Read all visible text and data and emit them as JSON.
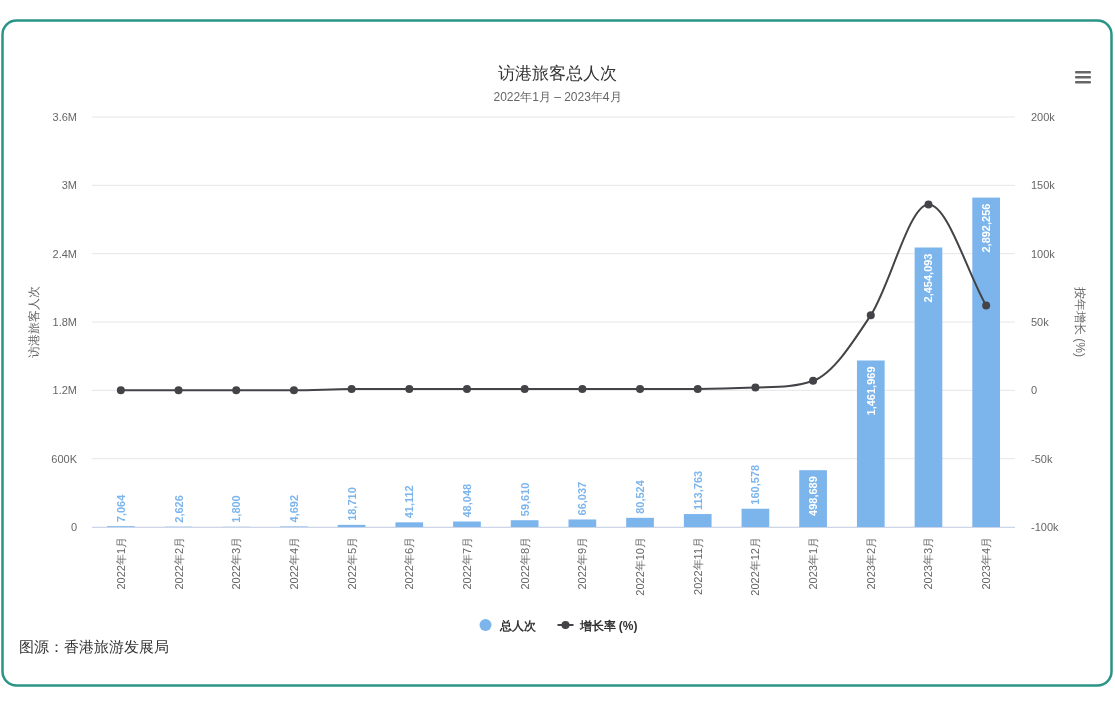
{
  "chart_data": {
    "type": "bar",
    "title": "访港旅客总人次",
    "subtitle": "2022年1月 – 2023年4月",
    "ylabel": "访港旅客人次",
    "y2label": "按年增长 (%)",
    "categories": [
      "2022年1月",
      "2022年2月",
      "2022年3月",
      "2022年4月",
      "2022年5月",
      "2022年6月",
      "2022年7月",
      "2022年8月",
      "2022年9月",
      "2022年10月",
      "2022年11月",
      "2022年12月",
      "2023年1月",
      "2023年2月",
      "2023年3月",
      "2023年4月"
    ],
    "series": [
      {
        "name": "总人次",
        "color": "#7cb5ec",
        "values": [
          7064,
          2626,
          1800,
          4692,
          18710,
          41112,
          48048,
          59610,
          66037,
          80524,
          113763,
          160578,
          498689,
          1461969,
          2454093,
          2892256
        ],
        "value_labels": [
          "7,064",
          "2,626",
          "1,800",
          "4,692",
          "18,710",
          "41,112",
          "48,048",
          "59,610",
          "66,037",
          "80,524",
          "113,763",
          "160,578",
          "498,689",
          "1,461,969",
          "2,454,093",
          "2,892,256"
        ]
      },
      {
        "name": "增长率 (%)",
        "type": "line",
        "axis": "y2",
        "color": "#434348",
        "marker": "circle",
        "values": [
          0,
          0,
          0,
          0,
          1000,
          1000,
          1000,
          1000,
          1000,
          1000,
          1000,
          2000,
          7000,
          55000,
          136000,
          62000
        ]
      }
    ],
    "ylim": [
      0,
      3600000
    ],
    "yticks": [
      0,
      {
        "value": 600000,
        "label": "600K"
      },
      {
        "value": 1200000,
        "label": "1.2M"
      },
      {
        "value": 1800000,
        "label": "1.8M"
      },
      {
        "value": 2400000,
        "label": "2.4M"
      },
      {
        "value": 3000000,
        "label": "3M"
      },
      {
        "value": 3600000,
        "label": "3.6M"
      }
    ],
    "y2lim": [
      -100000,
      200000
    ],
    "y2ticks": [
      {
        "value": -100000,
        "label": "-100k"
      },
      {
        "value": -50000,
        "label": "-50k"
      },
      0,
      {
        "value": 50000,
        "label": "50k"
      },
      {
        "value": 100000,
        "label": "100k"
      },
      {
        "value": 150000,
        "label": "150k"
      },
      {
        "value": 200000,
        "label": "200k"
      }
    ],
    "grid": "y",
    "legend": "bottom",
    "annotations": [
      "图源：香港旅游发展局"
    ]
  }
}
